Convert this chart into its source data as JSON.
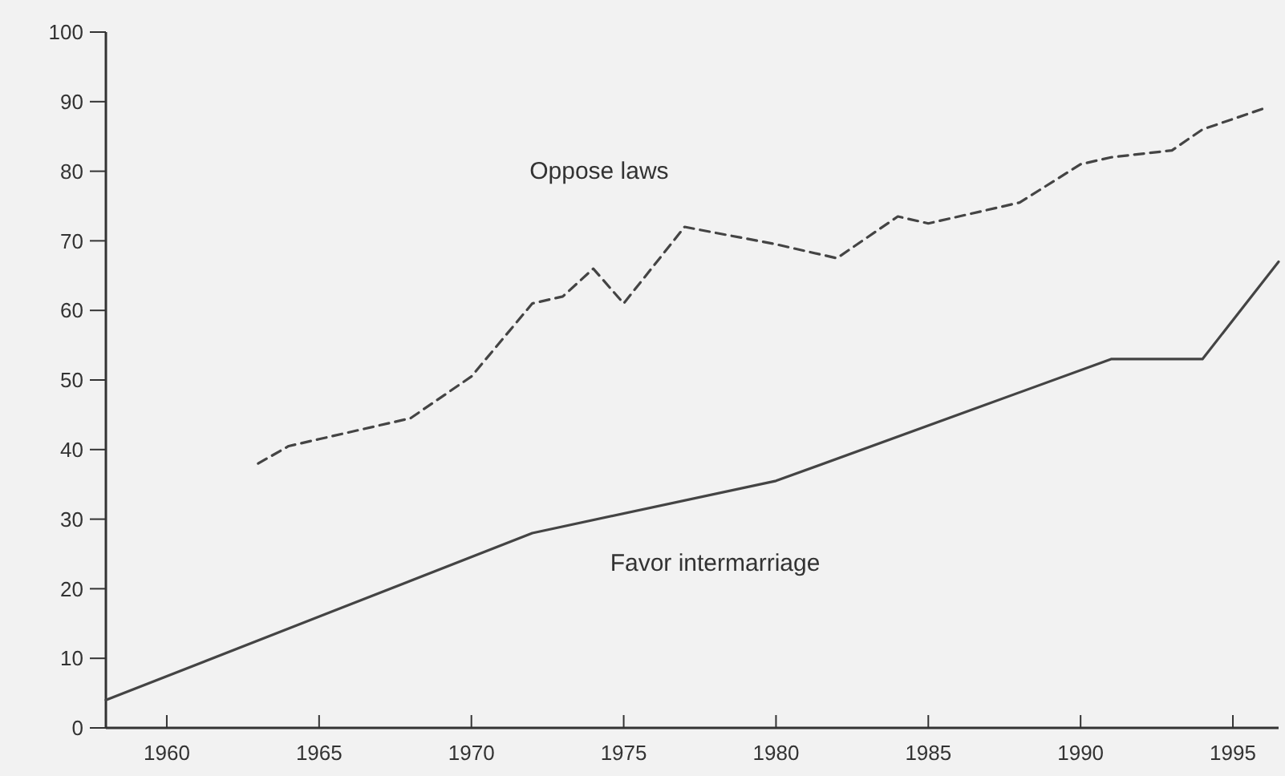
{
  "chart_data": {
    "type": "line",
    "xlim": [
      1958,
      1996.5
    ],
    "xticks": [
      1960,
      1965,
      1970,
      1975,
      1980,
      1985,
      1990,
      1995
    ],
    "ylim": [
      0,
      100
    ],
    "yticks": [
      0,
      10,
      20,
      30,
      40,
      50,
      60,
      70,
      80,
      90,
      100
    ],
    "grid": false,
    "marker": "none",
    "series": [
      {
        "name": "Oppose laws",
        "color": "#444444",
        "line_style": "dashed",
        "x": [
          1963,
          1964,
          1965,
          1968,
          1970,
          1972,
          1973,
          1974,
          1975,
          1977,
          1980,
          1982,
          1984,
          1985,
          1988,
          1990,
          1991,
          1993,
          1994,
          1996
        ],
        "values": [
          38,
          40.5,
          41.5,
          44.5,
          50.5,
          61,
          62,
          66,
          61,
          72,
          69.5,
          67.5,
          73.5,
          72.5,
          75.5,
          81,
          82,
          83,
          86,
          89
        ]
      },
      {
        "name": "Favor intermarriage",
        "color": "#444444",
        "line_style": "solid",
        "x": [
          1958,
          1972,
          1980,
          1991,
          1994,
          1996.5
        ],
        "values": [
          4,
          28,
          35.5,
          53,
          53,
          67
        ]
      }
    ]
  }
}
